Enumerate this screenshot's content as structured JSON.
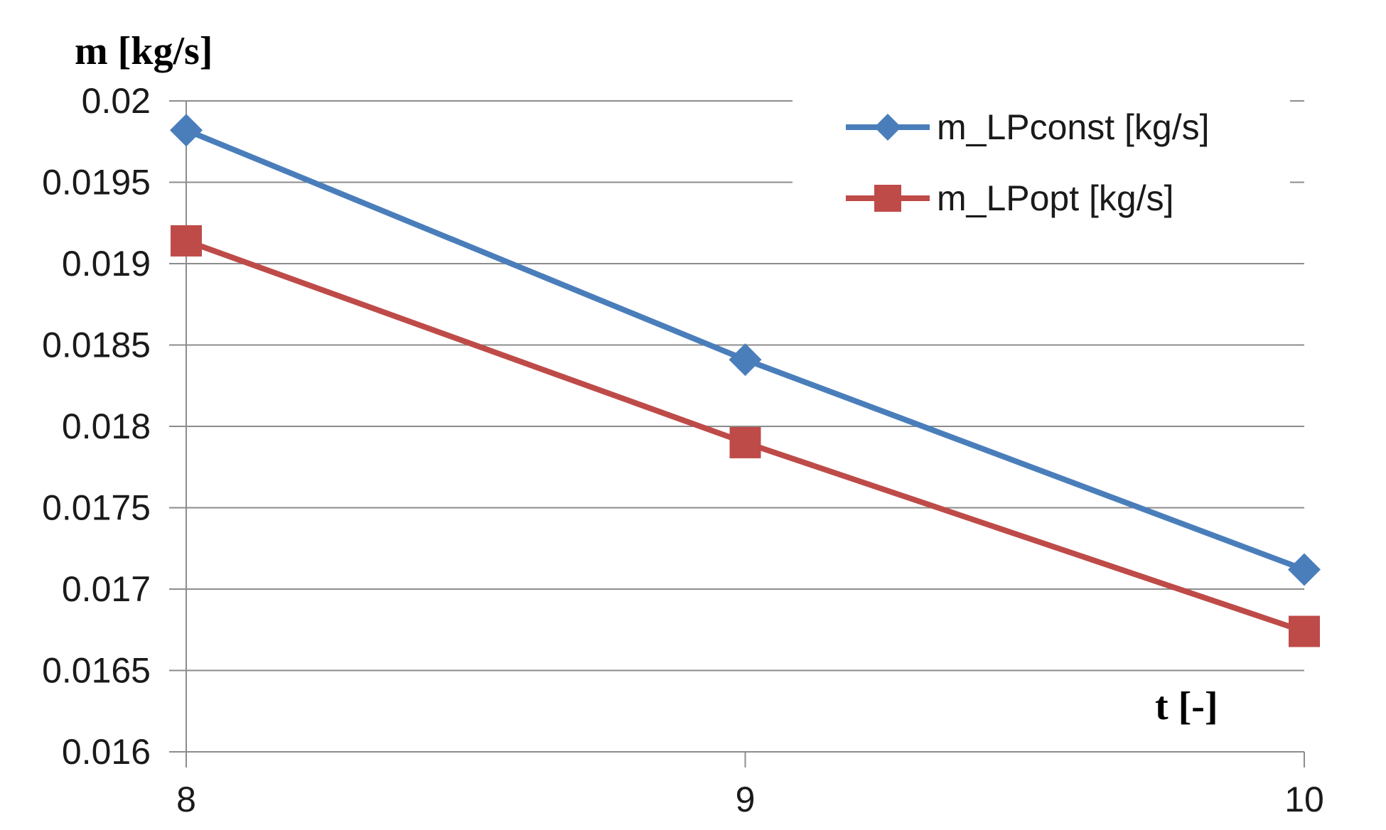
{
  "chart_data": {
    "type": "line",
    "title": "",
    "xlabel": "t [-]",
    "ylabel": "m [kg/s]",
    "x": [
      8,
      9,
      10
    ],
    "x_tick_labels": [
      "8",
      "9",
      "10"
    ],
    "ylim": [
      0.016,
      0.02
    ],
    "y_tick_labels": [
      "0.016",
      "0.0165",
      "0.017",
      "0.0175",
      "0.018",
      "0.0185",
      "0.019",
      "0.0195",
      "0.02"
    ],
    "grid": true,
    "legend_position": "top-right",
    "series": [
      {
        "name": "m_LPconst [kg/s]",
        "values": [
          0.01982,
          0.01841,
          0.01712
        ],
        "color": "#4a7ebb",
        "marker": "diamond"
      },
      {
        "name": "m_LPopt [kg/s]",
        "values": [
          0.01914,
          0.0179,
          0.01674
        ],
        "color": "#be4b48",
        "marker": "square"
      }
    ]
  }
}
